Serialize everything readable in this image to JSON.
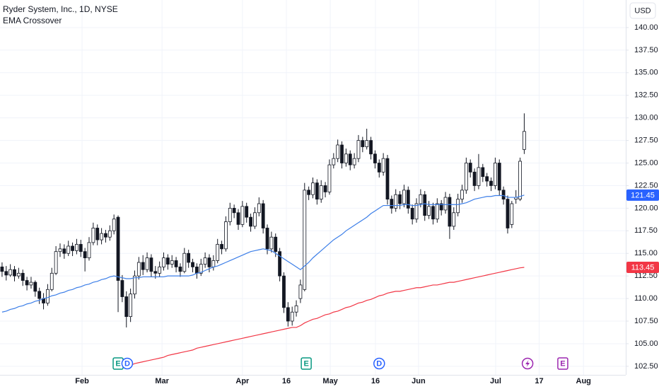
{
  "chart_data": {
    "type": "candlestick",
    "title": "Ryder System, Inc., 1D, NYSE",
    "subtitle": "EMA Crossover",
    "currency": "USD",
    "up_color": "#ffffff",
    "down_color": "#131722",
    "grid": true,
    "xlim": [
      -0.5,
      150.5
    ],
    "xticks": [
      {
        "value": 19.3,
        "label": "Feb"
      },
      {
        "value": 38.6,
        "label": "Mar"
      },
      {
        "value": 58,
        "label": "Apr"
      },
      {
        "value": 68.6,
        "label": "16"
      },
      {
        "value": 79.2,
        "label": "May"
      },
      {
        "value": 90.1,
        "label": "16"
      },
      {
        "value": 100.5,
        "label": "Jun"
      },
      {
        "value": 119.1,
        "label": "Jul"
      },
      {
        "value": 129.6,
        "label": "17"
      },
      {
        "value": 140.3,
        "label": "Aug"
      }
    ],
    "ylim": [
      101.55,
      143.05
    ],
    "yticks": [
      {
        "value": 102.5,
        "label": "102.50"
      },
      {
        "value": 105,
        "label": "105.00"
      },
      {
        "value": 107.5,
        "label": "107.50"
      },
      {
        "value": 110,
        "label": "110.00"
      },
      {
        "value": 112.5,
        "label": "112.50"
      },
      {
        "value": 115,
        "label": "115.00"
      },
      {
        "value": 117.5,
        "label": "117.50"
      },
      {
        "value": 120,
        "label": "120.00"
      },
      {
        "value": 122.5,
        "label": "122.50"
      },
      {
        "value": 125,
        "label": "125.00"
      },
      {
        "value": 127.5,
        "label": "127.50"
      },
      {
        "value": 130,
        "label": "130.00"
      },
      {
        "value": 132.5,
        "label": "132.50"
      },
      {
        "value": 135,
        "label": "135.00"
      },
      {
        "value": 137.5,
        "label": "137.50"
      },
      {
        "value": 140,
        "label": "140.00"
      }
    ],
    "candles": [
      [
        113.5,
        114.0,
        112.4,
        113.0
      ],
      [
        113.0,
        113.6,
        112.0,
        112.6
      ],
      [
        112.6,
        113.8,
        112.4,
        113.2
      ],
      [
        113.2,
        113.6,
        111.9,
        112.5
      ],
      [
        112.5,
        113.4,
        112.2,
        112.8
      ],
      [
        112.8,
        113.2,
        111.4,
        112.0
      ],
      [
        112.0,
        112.4,
        110.9,
        111.5
      ],
      [
        111.5,
        112.4,
        111.1,
        111.8
      ],
      [
        111.8,
        112.0,
        110.2,
        110.8
      ],
      [
        110.8,
        111.2,
        109.4,
        110.0
      ],
      [
        110.0,
        110.6,
        108.8,
        109.5
      ],
      [
        109.5,
        111.6,
        109.2,
        111.0
      ],
      [
        111.0,
        113.4,
        110.8,
        112.8
      ],
      [
        112.8,
        115.8,
        112.6,
        115.2
      ],
      [
        115.2,
        116.1,
        114.6,
        115.5
      ],
      [
        115.5,
        116.0,
        114.4,
        115.0
      ],
      [
        115.0,
        116.4,
        114.7,
        115.8
      ],
      [
        115.8,
        116.2,
        114.7,
        115.3
      ],
      [
        115.3,
        116.6,
        114.9,
        116.0
      ],
      [
        116.0,
        116.5,
        114.6,
        115.2
      ],
      [
        115.2,
        115.6,
        113.0,
        114.5
      ],
      [
        114.5,
        116.8,
        114.2,
        116.2
      ],
      [
        116.2,
        118.4,
        115.9,
        117.8
      ],
      [
        117.8,
        118.2,
        115.9,
        116.5
      ],
      [
        116.5,
        117.8,
        116.0,
        117.2
      ],
      [
        117.2,
        117.6,
        116.2,
        116.8
      ],
      [
        116.8,
        118.1,
        116.4,
        117.5
      ],
      [
        117.5,
        119.3,
        117.1,
        118.8
      ],
      [
        119.0,
        119.2,
        108.5,
        112.0
      ],
      [
        112.0,
        112.6,
        109.6,
        110.2
      ],
      [
        110.2,
        110.8,
        106.8,
        108.0
      ],
      [
        108.0,
        111.1,
        107.4,
        110.5
      ],
      [
        110.5,
        113.1,
        110.0,
        112.5
      ],
      [
        112.5,
        114.6,
        112.1,
        114.0
      ],
      [
        114.0,
        114.8,
        112.6,
        113.2
      ],
      [
        113.2,
        115.1,
        112.9,
        114.5
      ],
      [
        114.5,
        114.9,
        112.4,
        113.0
      ],
      [
        113.0,
        113.6,
        112.2,
        112.8
      ],
      [
        112.8,
        114.1,
        112.4,
        113.5
      ],
      [
        113.5,
        115.1,
        113.1,
        114.5
      ],
      [
        114.5,
        114.9,
        113.2,
        113.8
      ],
      [
        113.8,
        114.8,
        113.4,
        114.2
      ],
      [
        114.2,
        114.6,
        112.9,
        113.5
      ],
      [
        113.5,
        113.9,
        112.4,
        113.0
      ],
      [
        113.0,
        115.6,
        112.8,
        115.0
      ],
      [
        115.0,
        115.4,
        113.4,
        114.0
      ],
      [
        114.0,
        114.4,
        112.9,
        113.5
      ],
      [
        113.5,
        113.9,
        112.2,
        112.8
      ],
      [
        112.8,
        114.4,
        112.5,
        113.8
      ],
      [
        113.8,
        115.1,
        113.4,
        114.5
      ],
      [
        114.5,
        114.9,
        112.9,
        113.5
      ],
      [
        113.5,
        114.8,
        113.1,
        114.2
      ],
      [
        114.2,
        116.6,
        113.9,
        116.0
      ],
      [
        116.0,
        116.4,
        114.9,
        115.5
      ],
      [
        115.5,
        119.1,
        115.2,
        118.5
      ],
      [
        118.5,
        120.6,
        118.1,
        120.0
      ],
      [
        120.0,
        120.4,
        118.9,
        119.5
      ],
      [
        119.5,
        119.9,
        117.6,
        118.2
      ],
      [
        118.2,
        120.8,
        117.9,
        120.2
      ],
      [
        120.2,
        120.6,
        118.4,
        119.0
      ],
      [
        119.0,
        119.4,
        117.4,
        118.0
      ],
      [
        118.0,
        120.1,
        117.7,
        119.5
      ],
      [
        119.5,
        121.2,
        119.1,
        120.5
      ],
      [
        120.5,
        120.9,
        117.2,
        117.8
      ],
      [
        117.8,
        118.2,
        114.9,
        115.5
      ],
      [
        115.5,
        117.4,
        115.1,
        116.8
      ],
      [
        116.8,
        117.2,
        114.6,
        115.2
      ],
      [
        115.2,
        115.6,
        111.9,
        112.5
      ],
      [
        112.5,
        112.9,
        108.4,
        109.0
      ],
      [
        109.0,
        109.6,
        106.9,
        107.5
      ],
      [
        107.5,
        109.1,
        107.0,
        108.5
      ],
      [
        108.5,
        109.8,
        108.0,
        109.2
      ],
      [
        110.0,
        112.1,
        109.5,
        111.5
      ],
      [
        111.0,
        122.8,
        110.8,
        122.0
      ],
      [
        122.0,
        122.4,
        120.9,
        121.5
      ],
      [
        121.5,
        123.4,
        121.1,
        122.8
      ],
      [
        122.8,
        123.2,
        120.4,
        121.0
      ],
      [
        121.0,
        123.1,
        120.6,
        122.5
      ],
      [
        122.5,
        122.9,
        121.2,
        121.8
      ],
      [
        121.8,
        125.4,
        121.5,
        124.8
      ],
      [
        124.8,
        126.1,
        124.4,
        125.5
      ],
      [
        125.5,
        127.6,
        125.1,
        127.0
      ],
      [
        127.0,
        127.4,
        124.4,
        125.0
      ],
      [
        125.0,
        126.6,
        124.6,
        126.0
      ],
      [
        126.0,
        126.4,
        124.2,
        124.8
      ],
      [
        124.8,
        126.1,
        124.4,
        125.5
      ],
      [
        125.5,
        128.1,
        125.1,
        127.5
      ],
      [
        127.5,
        127.9,
        126.2,
        126.8
      ],
      [
        126.8,
        128.8,
        126.5,
        127.5
      ],
      [
        127.5,
        127.9,
        125.4,
        126.0
      ],
      [
        126.0,
        126.4,
        124.4,
        125.0
      ],
      [
        125.0,
        125.4,
        123.4,
        124.0
      ],
      [
        124.0,
        126.1,
        123.6,
        125.5
      ],
      [
        125.5,
        125.9,
        120.4,
        121.0
      ],
      [
        121.0,
        121.4,
        119.4,
        120.0
      ],
      [
        120.0,
        122.1,
        119.6,
        121.5
      ],
      [
        121.5,
        121.9,
        119.9,
        120.5
      ],
      [
        120.5,
        122.6,
        120.1,
        122.0
      ],
      [
        122.0,
        122.4,
        119.4,
        120.0
      ],
      [
        120.0,
        120.4,
        118.2,
        118.8
      ],
      [
        118.8,
        121.1,
        118.4,
        120.5
      ],
      [
        120.5,
        122.1,
        120.1,
        121.5
      ],
      [
        121.5,
        121.9,
        118.6,
        119.2
      ],
      [
        119.2,
        120.8,
        118.8,
        120.2
      ],
      [
        120.2,
        120.6,
        118.2,
        118.8
      ],
      [
        118.8,
        121.1,
        118.4,
        120.5
      ],
      [
        120.5,
        120.9,
        119.2,
        119.8
      ],
      [
        119.8,
        121.8,
        119.4,
        121.2
      ],
      [
        121.2,
        121.6,
        116.6,
        118.0
      ],
      [
        118.0,
        120.1,
        117.6,
        119.5
      ],
      [
        119.5,
        121.6,
        119.1,
        121.0
      ],
      [
        121.0,
        122.6,
        120.6,
        122.0
      ],
      [
        122.0,
        125.6,
        121.6,
        125.0
      ],
      [
        125.0,
        125.4,
        123.4,
        124.0
      ],
      [
        124.0,
        124.4,
        121.9,
        122.5
      ],
      [
        122.5,
        126.0,
        122.1,
        124.5
      ],
      [
        124.5,
        124.9,
        122.9,
        123.5
      ],
      [
        123.5,
        123.9,
        122.4,
        123.0
      ],
      [
        123.0,
        123.4,
        121.9,
        122.5
      ],
      [
        122.5,
        125.6,
        122.1,
        125.0
      ],
      [
        125.0,
        125.4,
        121.4,
        122.0
      ],
      [
        122.0,
        122.4,
        120.4,
        121.0
      ],
      [
        121.0,
        121.4,
        117.2,
        117.8
      ],
      [
        118.2,
        120.8,
        117.8,
        120.5
      ],
      [
        121.0,
        122.0,
        120.5,
        121.2
      ],
      [
        121.0,
        125.6,
        120.8,
        125.2
      ],
      [
        126.5,
        130.5,
        126.0,
        128.5
      ]
    ],
    "lines": [
      {
        "color": "#3d7fe8",
        "badge_color": "#2962ff",
        "values": [
          108.5,
          108.6,
          108.8,
          108.9,
          109.1,
          109.2,
          109.4,
          109.5,
          109.7,
          109.8,
          110.0,
          110.1,
          110.3,
          110.4,
          110.6,
          110.7,
          110.9,
          111.0,
          111.2,
          111.3,
          111.5,
          111.6,
          111.8,
          111.9,
          112.1,
          112.2,
          112.4,
          112.5,
          112.4,
          112.3,
          112.2,
          112.2,
          112.3,
          112.3,
          112.4,
          112.4,
          112.4,
          112.4,
          112.4,
          112.4,
          112.5,
          112.5,
          112.5,
          112.5,
          112.5,
          112.5,
          112.6,
          112.8,
          112.9,
          113.1,
          113.3,
          113.5,
          113.6,
          113.8,
          114.0,
          114.2,
          114.4,
          114.6,
          114.8,
          115.0,
          115.2,
          115.3,
          115.4,
          115.5,
          115.4,
          115.3,
          115.0,
          114.7,
          114.4,
          114.1,
          113.8,
          113.5,
          113.2,
          113.6,
          114.0,
          114.5,
          114.9,
          115.3,
          115.7,
          116.1,
          116.5,
          116.8,
          117.1,
          117.5,
          117.8,
          118.1,
          118.4,
          118.7,
          119.0,
          119.4,
          119.7,
          120.0,
          120.3,
          120.3,
          120.3,
          120.3,
          120.3,
          120.4,
          120.4,
          120.3,
          120.3,
          120.4,
          120.5,
          120.4,
          120.4,
          120.4,
          120.4,
          120.4,
          120.4,
          120.4,
          120.4,
          120.5,
          120.6,
          120.8,
          121.0,
          121.1,
          121.2,
          121.3,
          121.3,
          121.4,
          121.4,
          121.4,
          121.2,
          121.2,
          121.2,
          121.3,
          121.45
        ]
      },
      {
        "color": "#f23645",
        "badge_color": "#f23645",
        "values": [
          null,
          null,
          null,
          null,
          null,
          null,
          null,
          null,
          null,
          null,
          null,
          null,
          null,
          null,
          null,
          null,
          null,
          null,
          null,
          null,
          null,
          null,
          null,
          null,
          null,
          null,
          null,
          102.2,
          102.3,
          102.4,
          102.5,
          102.6,
          102.8,
          102.9,
          103.0,
          103.1,
          103.2,
          103.3,
          103.4,
          103.5,
          103.7,
          103.8,
          103.9,
          104.0,
          104.1,
          104.2,
          104.3,
          104.5,
          104.6,
          104.7,
          104.8,
          104.9,
          105.0,
          105.1,
          105.2,
          105.3,
          105.4,
          105.5,
          105.6,
          105.7,
          105.8,
          105.9,
          106.0,
          106.1,
          106.2,
          106.3,
          106.4,
          106.5,
          106.6,
          106.7,
          106.8,
          106.8,
          107.0,
          107.3,
          107.5,
          107.7,
          107.8,
          108.0,
          108.2,
          108.3,
          108.5,
          108.6,
          108.8,
          109.0,
          109.1,
          109.3,
          109.5,
          109.6,
          109.8,
          109.9,
          110.1,
          110.3,
          110.4,
          110.6,
          110.7,
          110.8,
          110.8,
          110.9,
          111.0,
          111.1,
          111.2,
          111.2,
          111.3,
          111.4,
          111.5,
          111.5,
          111.6,
          111.7,
          111.8,
          111.8,
          111.9,
          112.0,
          112.1,
          112.2,
          112.3,
          112.4,
          112.5,
          112.6,
          112.7,
          112.8,
          112.9,
          113.0,
          113.1,
          113.2,
          113.3,
          113.4,
          113.45
        ]
      }
    ],
    "events": [
      {
        "label": "E",
        "x": 28,
        "shape": "square",
        "color": "#089981"
      },
      {
        "label": "D",
        "x": 30.2,
        "shape": "circle",
        "color": "#2962ff"
      },
      {
        "label": "E",
        "x": 73.4,
        "shape": "square",
        "color": "#089981"
      },
      {
        "label": "D",
        "x": 91,
        "shape": "circle",
        "color": "#2962ff"
      },
      {
        "x": 126.8,
        "shape": "bolt",
        "color": "#9c27b0"
      },
      {
        "label": "E",
        "x": 135.3,
        "shape": "square",
        "color": "#9c27b0"
      }
    ]
  }
}
